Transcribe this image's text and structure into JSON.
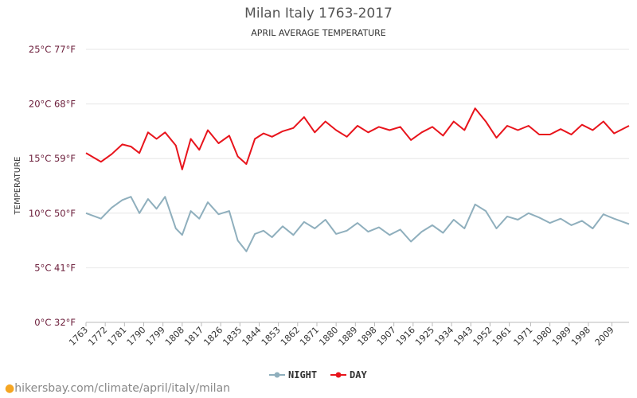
{
  "chart_data": {
    "type": "line",
    "title": "Milan Italy 1763-2017",
    "subtitle": "APRIL AVERAGE TEMPERATURE",
    "ylabel": "TEMPERATURE",
    "ylim": [
      0,
      25
    ],
    "xlim": [
      1763,
      2017
    ],
    "yticks": [
      {
        "value": 0,
        "label": "0°C 32°F"
      },
      {
        "value": 5,
        "label": "5°C 41°F"
      },
      {
        "value": 10,
        "label": "10°C 50°F"
      },
      {
        "value": 15,
        "label": "15°C 59°F"
      },
      {
        "value": 20,
        "label": "20°C 68°F"
      },
      {
        "value": 25,
        "label": "25°C 77°F"
      }
    ],
    "xticks": [
      1763,
      1772,
      1781,
      1790,
      1799,
      1808,
      1817,
      1826,
      1835,
      1844,
      1853,
      1862,
      1871,
      1880,
      1889,
      1898,
      1907,
      1916,
      1925,
      1934,
      1943,
      1952,
      1961,
      1971,
      1980,
      1989,
      1998,
      2009
    ],
    "grid": true,
    "legend_position": "bottom-center",
    "series": [
      {
        "name": "NIGHT",
        "color": "#8fafbd",
        "x": [
          1763,
          1770,
          1775,
          1780,
          1784,
          1788,
          1792,
          1796,
          1800,
          1805,
          1808,
          1812,
          1816,
          1820,
          1825,
          1830,
          1834,
          1838,
          1842,
          1846,
          1850,
          1855,
          1860,
          1865,
          1870,
          1875,
          1880,
          1885,
          1890,
          1895,
          1900,
          1905,
          1910,
          1915,
          1920,
          1925,
          1930,
          1935,
          1940,
          1945,
          1950,
          1955,
          1960,
          1965,
          1970,
          1975,
          1980,
          1985,
          1990,
          1995,
          2000,
          2005,
          2010,
          2017
        ],
        "y": [
          10.0,
          9.5,
          10.5,
          11.2,
          11.5,
          10.0,
          11.3,
          10.4,
          11.5,
          8.6,
          8.0,
          10.2,
          9.5,
          11.0,
          9.9,
          10.2,
          7.5,
          6.5,
          8.1,
          8.4,
          7.8,
          8.8,
          8.0,
          9.2,
          8.6,
          9.4,
          8.1,
          8.4,
          9.1,
          8.3,
          8.7,
          8.0,
          8.5,
          7.4,
          8.3,
          8.9,
          8.2,
          9.4,
          8.6,
          10.8,
          10.2,
          8.6,
          9.7,
          9.4,
          10.0,
          9.6,
          9.1,
          9.5,
          8.9,
          9.3,
          8.6,
          9.9,
          9.5,
          9.0
        ]
      },
      {
        "name": "DAY",
        "color": "#e8141c",
        "x": [
          1763,
          1770,
          1775,
          1780,
          1784,
          1788,
          1792,
          1796,
          1800,
          1805,
          1808,
          1812,
          1816,
          1820,
          1825,
          1830,
          1834,
          1838,
          1842,
          1846,
          1850,
          1855,
          1860,
          1865,
          1870,
          1875,
          1880,
          1885,
          1890,
          1895,
          1900,
          1905,
          1910,
          1915,
          1920,
          1925,
          1930,
          1935,
          1940,
          1945,
          1950,
          1955,
          1960,
          1965,
          1970,
          1975,
          1980,
          1985,
          1990,
          1995,
          2000,
          2005,
          2010,
          2017
        ],
        "y": [
          15.5,
          14.7,
          15.4,
          16.3,
          16.1,
          15.5,
          17.4,
          16.8,
          17.4,
          16.2,
          14.0,
          16.8,
          15.8,
          17.6,
          16.4,
          17.1,
          15.2,
          14.5,
          16.8,
          17.3,
          17.0,
          17.5,
          17.8,
          18.8,
          17.4,
          18.4,
          17.6,
          17.0,
          18.0,
          17.4,
          17.9,
          17.6,
          17.9,
          16.7,
          17.4,
          17.9,
          17.1,
          18.4,
          17.6,
          19.6,
          18.4,
          16.9,
          18.0,
          17.6,
          18.0,
          17.2,
          17.2,
          17.7,
          17.2,
          18.1,
          17.6,
          18.4,
          17.3,
          18.0
        ]
      }
    ]
  },
  "legend": {
    "night_label": "NIGHT",
    "day_label": "DAY"
  },
  "watermark": {
    "text": "hikersbay.com/climate/april/italy/milan"
  }
}
